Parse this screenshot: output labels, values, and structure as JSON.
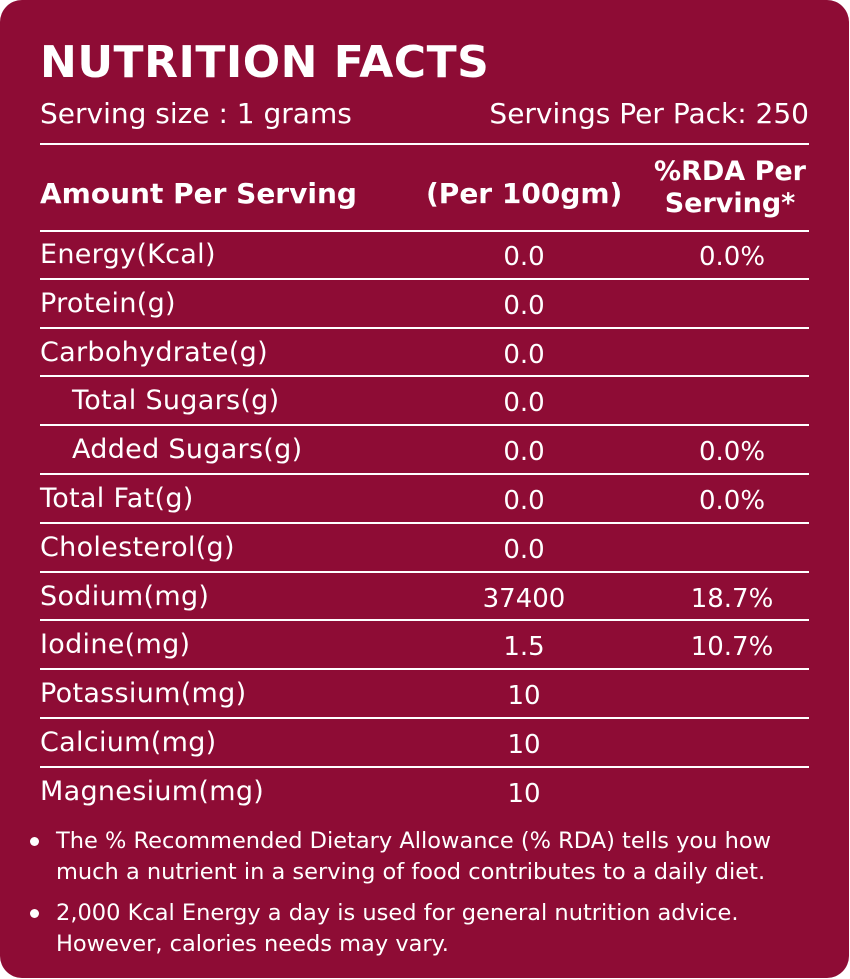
{
  "label": {
    "title": "NUTRITION FACTS",
    "serving_size": "Serving size : 1 grams",
    "servings_per_pack": "Servings Per Pack: 250"
  },
  "table": {
    "headers": {
      "amount": "Amount Per Serving",
      "per_100": "(Per 100gm)",
      "rda_line1": "%RDA Per",
      "rda_line2": "Serving*"
    },
    "rows": [
      {
        "name": "Energy(Kcal)",
        "per_100": "0.0",
        "rda": "0.0%",
        "indent": false
      },
      {
        "name": "Protein(g)",
        "per_100": "0.0",
        "rda": "",
        "indent": false
      },
      {
        "name": "Carbohydrate(g)",
        "per_100": "0.0",
        "rda": "",
        "indent": false
      },
      {
        "name": "Total Sugars(g)",
        "per_100": "0.0",
        "rda": "",
        "indent": true
      },
      {
        "name": "Added Sugars(g)",
        "per_100": "0.0",
        "rda": "0.0%",
        "indent": true
      },
      {
        "name": "Total Fat(g)",
        "per_100": "0.0",
        "rda": "0.0%",
        "indent": false
      },
      {
        "name": "Cholesterol(g)",
        "per_100": "0.0",
        "rda": "",
        "indent": false
      },
      {
        "name": "Sodium(mg)",
        "per_100": "37400",
        "rda": "18.7%",
        "indent": false
      },
      {
        "name": "Iodine(mg)",
        "per_100": "1.5",
        "rda": "10.7%",
        "indent": false
      },
      {
        "name": "Potassium(mg)",
        "per_100": "10",
        "rda": "",
        "indent": false
      },
      {
        "name": "Calcium(mg)",
        "per_100": "10",
        "rda": "",
        "indent": false
      },
      {
        "name": "Magnesium(mg)",
        "per_100": "10",
        "rda": "",
        "indent": false
      }
    ]
  },
  "notes": [
    "The % Recommended Dietary Allowance (% RDA) tells you how much a nutrient in a serving of food contributes to a daily diet.",
    "2,000 Kcal Energy a day is used for general nutrition advice. However, calories needs may vary."
  ],
  "colors": {
    "background": "#8e0c35",
    "text": "#ffffff"
  }
}
